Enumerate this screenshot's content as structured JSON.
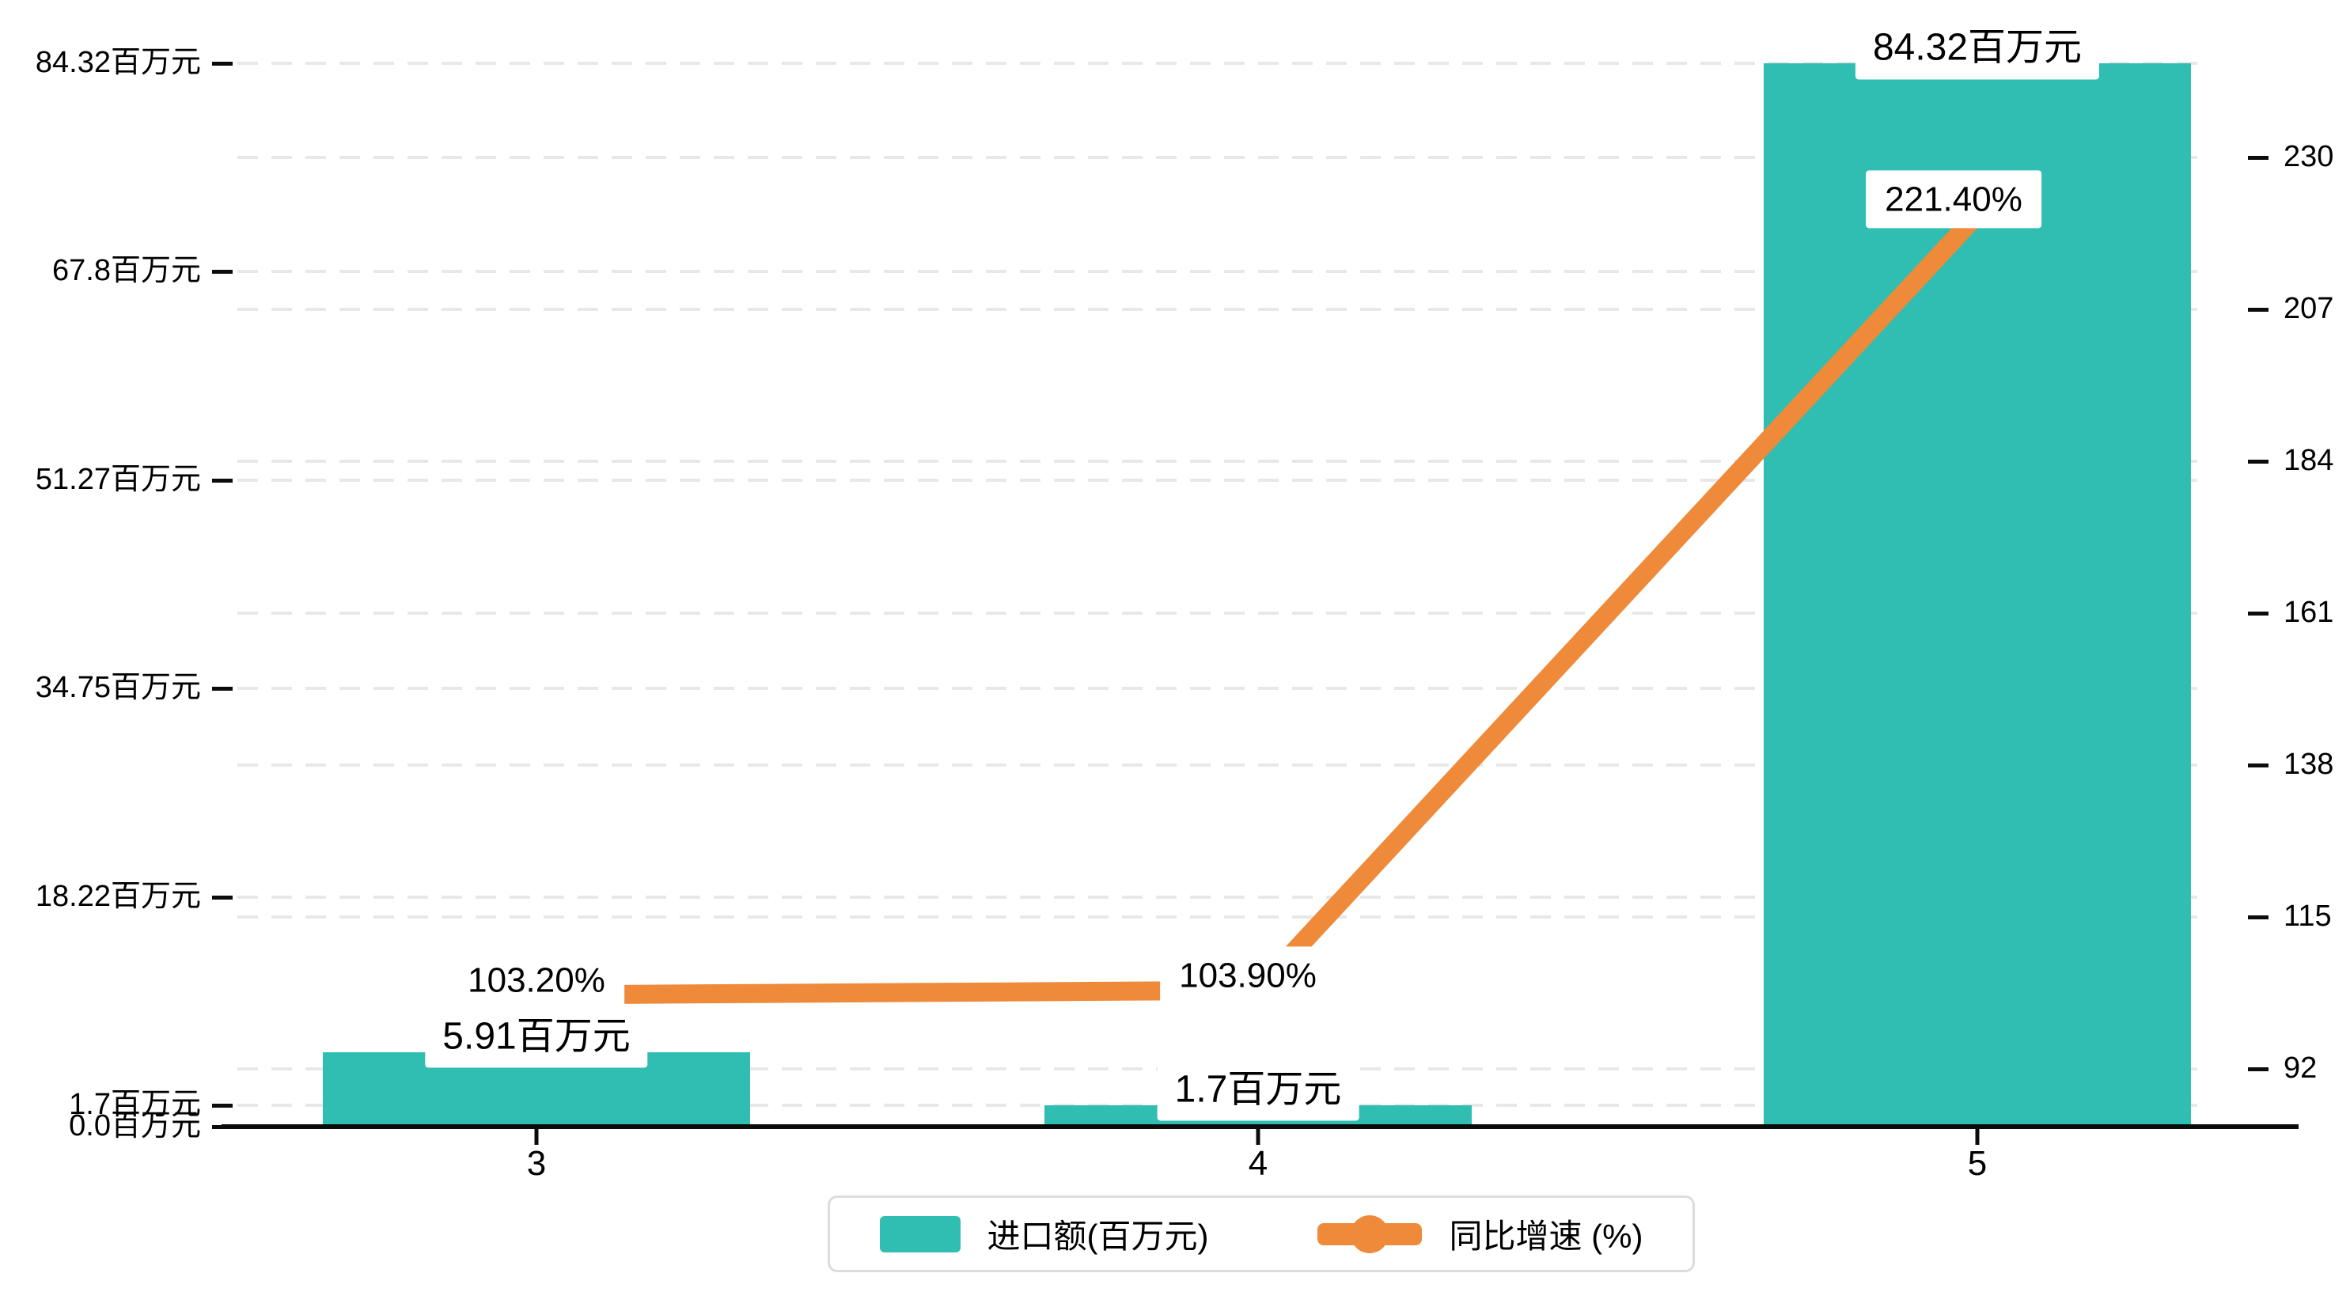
{
  "chart_data": {
    "type": "bar+line combo, dual y-axis",
    "categories": [
      "3",
      "4",
      "5"
    ],
    "series": [
      {
        "name": "进口额(百万元)",
        "type": "bar",
        "yaxis": "left",
        "color": "#2FBEB1",
        "values": [
          5.91,
          1.7,
          84.32
        ],
        "data_labels": [
          "5.91百万元",
          "1.7百万元",
          "84.32百万元"
        ]
      },
      {
        "name": "同比增速 (%)",
        "type": "line",
        "yaxis": "right",
        "color": "#EE8A3A",
        "values": [
          103.2,
          103.9,
          221.4
        ],
        "data_labels": [
          "103.20%",
          "103.90%",
          "221.40%"
        ]
      }
    ],
    "left_axis": {
      "min": 0,
      "max": 84.32,
      "ticks": [
        {
          "value": 0,
          "label": "0.0百万元"
        },
        {
          "value": 1.7,
          "label": "1.7百万元"
        },
        {
          "value": 18.22,
          "label": "18.22百万元"
        },
        {
          "value": 34.75,
          "label": "34.75百万元"
        },
        {
          "value": 51.27,
          "label": "51.27百万元"
        },
        {
          "value": 67.8,
          "label": "67.8百万元"
        },
        {
          "value": 84.32,
          "label": "84.32百万元"
        }
      ]
    },
    "right_axis": {
      "ticks": [
        {
          "value": 92,
          "label": "92"
        },
        {
          "value": 115,
          "label": "115"
        },
        {
          "value": 138,
          "label": "138"
        },
        {
          "value": 161,
          "label": "161"
        },
        {
          "value": 184,
          "label": "184"
        },
        {
          "value": 207,
          "label": "207"
        },
        {
          "value": 230,
          "label": "230"
        }
      ]
    },
    "legend": {
      "items": [
        {
          "label": "进口额(百万元)",
          "icon": "bar-swatch"
        },
        {
          "label": "同比增速 (%)",
          "icon": "line-dot-swatch"
        }
      ]
    },
    "grid": {
      "style": "dashed",
      "color": "#E8E8E8"
    },
    "title": "",
    "background": "#FFFFFF"
  }
}
